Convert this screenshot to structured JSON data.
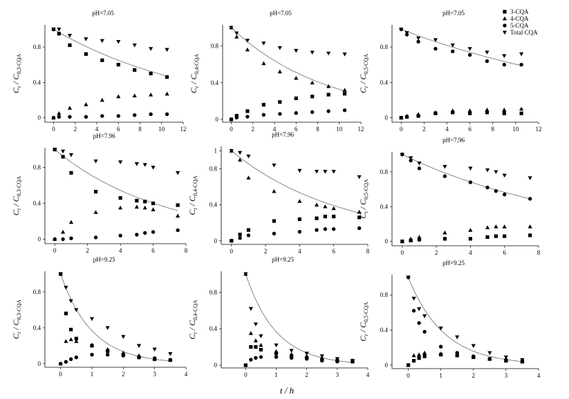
{
  "figure": {
    "x_axis_label": "t / h",
    "legend": {
      "placement": "top-right",
      "entries": [
        {
          "name": "3-CQA",
          "marker": "square"
        },
        {
          "name": "4-CQA",
          "marker": "triangle-up"
        },
        {
          "name": "5-CQA",
          "marker": "circle"
        },
        {
          "name": "Total CQA",
          "marker": "triangle-down"
        }
      ]
    }
  },
  "chart_data": [
    {
      "type": "scatter",
      "title": "pH=7.05",
      "ylabel_main": "C",
      "ylabel_sub": "t",
      "ylabel_main2": "C",
      "ylabel_sub2": "0,3-CQA",
      "xlim": [
        -0.8,
        12
      ],
      "ylim": [
        -0.05,
        1.05
      ],
      "xticks": [
        0,
        2,
        4,
        6,
        8,
        10,
        12
      ],
      "yticks": [
        0,
        0.4,
        0.8
      ],
      "x": [
        0,
        0.5,
        1.5,
        3,
        4.5,
        6,
        7.5,
        9,
        10.5
      ],
      "series": [
        {
          "name": "3-CQA",
          "values": [
            1.0,
            0.95,
            0.82,
            0.72,
            0.65,
            0.6,
            0.54,
            0.5,
            0.46
          ]
        },
        {
          "name": "4-CQA",
          "values": [
            0,
            0.05,
            0.11,
            0.15,
            0.2,
            0.24,
            0.25,
            0.26,
            0.27
          ]
        },
        {
          "name": "5-CQA",
          "values": [
            0,
            0.01,
            0.01,
            0.01,
            0.02,
            0.02,
            0.03,
            0.04,
            0.04
          ]
        },
        {
          "name": "Total CQA",
          "values": [
            1.0,
            1.0,
            0.93,
            0.89,
            0.87,
            0.86,
            0.82,
            0.78,
            0.77
          ]
        }
      ],
      "fit": {
        "x0": 0,
        "x1": 10.5,
        "y0": 1.0,
        "y1": 0.47
      }
    },
    {
      "type": "scatter",
      "title": "pH=7.05",
      "ylabel_main": "C",
      "ylabel_sub": "t",
      "ylabel_main2": "C",
      "ylabel_sub2": "0,4-CQA",
      "xlim": [
        -0.8,
        12
      ],
      "ylim": [
        -0.03,
        1.03
      ],
      "xticks": [
        0,
        2,
        4,
        6,
        8,
        10,
        12
      ],
      "yticks": [
        0,
        0.4,
        0.8
      ],
      "x": [
        0,
        0.5,
        1.5,
        3,
        4.5,
        6,
        7.5,
        9,
        10.5
      ],
      "series": [
        {
          "name": "3-CQA",
          "values": [
            0,
            0.04,
            0.09,
            0.16,
            0.19,
            0.23,
            0.25,
            0.27,
            0.28
          ]
        },
        {
          "name": "4-CQA",
          "values": [
            1.0,
            0.9,
            0.76,
            0.61,
            0.52,
            0.45,
            0.4,
            0.36,
            0.32
          ]
        },
        {
          "name": "5-CQA",
          "values": [
            0,
            0.02,
            0.03,
            0.05,
            0.06,
            0.07,
            0.08,
            0.09,
            0.1
          ]
        },
        {
          "name": "Total CQA",
          "values": [
            1.0,
            0.94,
            0.86,
            0.83,
            0.78,
            0.75,
            0.73,
            0.72,
            0.71
          ]
        }
      ],
      "fit": {
        "x0": 0,
        "x1": 10.5,
        "y0": 1.0,
        "y1": 0.31
      }
    },
    {
      "type": "scatter",
      "title": "pH=7.05",
      "ylabel_main": "C",
      "ylabel_sub": "t",
      "ylabel_main2": "C",
      "ylabel_sub2": "0,5-CQA",
      "xlim": [
        -0.8,
        12
      ],
      "ylim": [
        -0.05,
        1.05
      ],
      "xticks": [
        0,
        2,
        4,
        6,
        8,
        10,
        12
      ],
      "yticks": [
        0,
        0.4,
        0.8
      ],
      "x": [
        0,
        0.5,
        1.5,
        3,
        4.5,
        6,
        7.5,
        9,
        10.5
      ],
      "series": [
        {
          "name": "3-CQA",
          "values": [
            0,
            0.01,
            0.02,
            0.05,
            0.06,
            0.05,
            0.06,
            0.05,
            0.05
          ]
        },
        {
          "name": "4-CQA",
          "values": [
            0,
            0.02,
            0.04,
            0.06,
            0.08,
            0.08,
            0.09,
            0.09,
            0.1
          ]
        },
        {
          "name": "5-CQA",
          "values": [
            1.0,
            0.94,
            0.86,
            0.78,
            0.75,
            0.71,
            0.64,
            0.6,
            0.6
          ]
        },
        {
          "name": "Total CQA",
          "values": [
            1.0,
            0.96,
            0.9,
            0.88,
            0.82,
            0.78,
            0.74,
            0.7,
            0.72
          ]
        }
      ],
      "fit": {
        "x0": 0,
        "x1": 10.5,
        "y0": 1.0,
        "y1": 0.59
      }
    },
    {
      "type": "scatter",
      "title": "pH=7.96",
      "ylabel_main": "C",
      "ylabel_sub": "t",
      "ylabel_main2": "C",
      "ylabel_sub2": "0,3-CQA",
      "xlim": [
        -0.6,
        8
      ],
      "ylim": [
        -0.05,
        1.02
      ],
      "xticks": [
        0,
        2,
        4,
        6,
        8
      ],
      "yticks": [
        0,
        0.4,
        0.8
      ],
      "x": [
        0,
        0.5,
        1,
        2.5,
        4,
        5,
        5.5,
        6,
        7.5
      ],
      "series": [
        {
          "name": "3-CQA",
          "values": [
            1.0,
            0.92,
            0.74,
            0.53,
            0.46,
            0.43,
            0.42,
            0.4,
            0.38
          ]
        },
        {
          "name": "4-CQA",
          "values": [
            0,
            0.08,
            0.19,
            0.3,
            0.35,
            0.36,
            0.35,
            0.33,
            0.26
          ]
        },
        {
          "name": "5-CQA",
          "values": [
            0,
            0,
            0.01,
            0.02,
            0.04,
            0.05,
            0.07,
            0.08,
            0.1
          ]
        },
        {
          "name": "Total CQA",
          "values": [
            1.0,
            0.98,
            0.94,
            0.87,
            0.86,
            0.84,
            0.83,
            0.8,
            0.74
          ]
        }
      ],
      "fit": {
        "x0": 0,
        "x1": 7.5,
        "y0": 1.0,
        "y1": 0.32
      }
    },
    {
      "type": "scatter",
      "title": "pH=7.96",
      "ylabel_main": "C",
      "ylabel_sub": "t",
      "ylabel_main2": "C",
      "ylabel_sub2": "0,4-CQA",
      "xlim": [
        -0.6,
        8
      ],
      "ylim": [
        -0.04,
        1.05
      ],
      "xticks": [
        0,
        2,
        4,
        6,
        8
      ],
      "yticks": [
        0,
        0.4,
        0.8,
        1.0
      ],
      "x": [
        0,
        0.5,
        1,
        2.5,
        4,
        5,
        5.5,
        6,
        7.5
      ],
      "series": [
        {
          "name": "3-CQA",
          "values": [
            0,
            0.07,
            0.12,
            0.22,
            0.24,
            0.25,
            0.27,
            0.27,
            0.26
          ]
        },
        {
          "name": "4-CQA",
          "values": [
            1.0,
            0.9,
            0.7,
            0.55,
            0.44,
            0.4,
            0.38,
            0.36,
            0.32
          ]
        },
        {
          "name": "5-CQA",
          "values": [
            0,
            0.03,
            0.06,
            0.08,
            0.1,
            0.12,
            0.13,
            0.13,
            0.14
          ]
        },
        {
          "name": "Total CQA",
          "values": [
            1.0,
            0.98,
            0.94,
            0.84,
            0.78,
            0.77,
            0.77,
            0.77,
            0.71
          ]
        }
      ],
      "fit": {
        "x0": 0,
        "x1": 7.5,
        "y0": 1.0,
        "y1": 0.31
      }
    },
    {
      "type": "scatter",
      "title": "pH=7.96",
      "ylabel_main": "C",
      "ylabel_sub": "t",
      "ylabel_main2": "C",
      "ylabel_sub2": "0,5-CQA",
      "xlim": [
        -0.6,
        8
      ],
      "ylim": [
        -0.05,
        1.03
      ],
      "xticks": [
        0,
        2,
        4,
        6,
        8
      ],
      "yticks": [
        0,
        0.4,
        0.8
      ],
      "x": [
        0,
        0.5,
        1,
        2.5,
        4,
        5,
        5.5,
        6,
        7.5
      ],
      "series": [
        {
          "name": "3-CQA",
          "values": [
            0,
            0.01,
            0.02,
            0.03,
            0.03,
            0.05,
            0.06,
            0.06,
            0.07
          ]
        },
        {
          "name": "4-CQA",
          "values": [
            0,
            0.03,
            0.05,
            0.1,
            0.13,
            0.16,
            0.17,
            0.17,
            0.17
          ]
        },
        {
          "name": "5-CQA",
          "values": [
            1.0,
            0.93,
            0.84,
            0.75,
            0.68,
            0.62,
            0.58,
            0.54,
            0.49
          ]
        },
        {
          "name": "Total CQA",
          "values": [
            1.0,
            0.96,
            0.9,
            0.86,
            0.84,
            0.82,
            0.8,
            0.76,
            0.73
          ]
        }
      ],
      "fit": {
        "x0": 0,
        "x1": 7.5,
        "y0": 1.0,
        "y1": 0.49
      }
    },
    {
      "type": "scatter",
      "title": "pH=9.25",
      "ylabel_main": "C",
      "ylabel_sub": "t",
      "ylabel_main2": "C",
      "ylabel_sub2": "0,3-CQA",
      "xlim": [
        -0.5,
        4
      ],
      "ylim": [
        -0.04,
        1.03
      ],
      "xticks": [
        0,
        1,
        2,
        3,
        4
      ],
      "yticks": [
        0,
        0.4,
        0.8
      ],
      "x": [
        0,
        0.17,
        0.33,
        0.5,
        1,
        1.5,
        2,
        2.5,
        3,
        3.5
      ],
      "series": [
        {
          "name": "3-CQA",
          "values": [
            1.0,
            0.56,
            0.38,
            0.28,
            0.2,
            0.14,
            0.1,
            0.07,
            0.05,
            0.04
          ]
        },
        {
          "name": "4-CQA",
          "values": [
            0,
            0.25,
            0.27,
            0.25,
            0.21,
            0.16,
            0.12,
            0.09,
            0.06,
            0.04
          ]
        },
        {
          "name": "5-CQA",
          "values": [
            0,
            0.02,
            0.05,
            0.07,
            0.1,
            0.1,
            0.09,
            0.07,
            0.06,
            0.04
          ]
        },
        {
          "name": "Total CQA",
          "values": [
            1.0,
            0.85,
            0.7,
            0.6,
            0.5,
            0.4,
            0.3,
            0.2,
            0.16,
            0.11
          ]
        }
      ],
      "fit": {
        "x0": 0,
        "x1": 3.5,
        "y0": 1.0,
        "y1": 0.03
      }
    },
    {
      "type": "scatter",
      "title": "pH=9.25",
      "ylabel_main": "C",
      "ylabel_sub": "t",
      "ylabel_main2": "C",
      "ylabel_sub2": "0,4-CQA",
      "xlim": [
        -0.8,
        4
      ],
      "ylim": [
        -0.03,
        1.03
      ],
      "xticks": [
        0,
        1,
        2,
        3,
        4
      ],
      "yticks": [
        0,
        0.4,
        0.8
      ],
      "x": [
        0,
        0.17,
        0.33,
        0.5,
        1,
        1.5,
        2,
        2.5,
        3,
        3.5
      ],
      "series": [
        {
          "name": "3-CQA",
          "values": [
            0,
            0.2,
            0.2,
            0.17,
            0.13,
            0.1,
            0.08,
            0.06,
            0.05,
            0.04
          ]
        },
        {
          "name": "4-CQA",
          "values": [
            1.0,
            0.35,
            0.27,
            0.22,
            0.15,
            0.12,
            0.1,
            0.08,
            0.06,
            0.05
          ]
        },
        {
          "name": "5-CQA",
          "values": [
            0,
            0.06,
            0.08,
            0.09,
            0.09,
            0.08,
            0.07,
            0.05,
            0.04,
            0.04
          ]
        },
        {
          "name": "Total CQA",
          "values": [
            1.0,
            0.62,
            0.45,
            0.32,
            0.22,
            0.16,
            0.13,
            0.1,
            0.07,
            0.05
          ]
        }
      ],
      "fit": {
        "x0": 0,
        "x1": 3.5,
        "y0": 1.0,
        "y1": 0.03
      }
    },
    {
      "type": "scatter",
      "title": "pH=9.25",
      "ylabel_main": "C",
      "ylabel_sub": "t",
      "ylabel_main2": "C",
      "ylabel_sub2": "0,5-CQA",
      "xlim": [
        -0.5,
        4
      ],
      "ylim": [
        -0.04,
        1.03
      ],
      "xticks": [
        0,
        1,
        2,
        3,
        4
      ],
      "yticks": [
        0,
        0.4,
        0.8
      ],
      "x": [
        0,
        0.17,
        0.33,
        0.5,
        1,
        1.5,
        2,
        2.5,
        3,
        3.5
      ],
      "series": [
        {
          "name": "3-CQA",
          "values": [
            0,
            0.05,
            0.08,
            0.1,
            0.12,
            0.11,
            0.09,
            0.07,
            0.05,
            0.04
          ]
        },
        {
          "name": "4-CQA",
          "values": [
            0,
            0.11,
            0.12,
            0.14,
            0.13,
            0.12,
            0.1,
            0.07,
            0.05,
            0.04
          ]
        },
        {
          "name": "5-CQA",
          "values": [
            1.0,
            0.62,
            0.48,
            0.38,
            0.21,
            0.14,
            0.1,
            0.07,
            0.06,
            0.04
          ]
        },
        {
          "name": "Total CQA",
          "values": [
            1.0,
            0.76,
            0.64,
            0.56,
            0.42,
            0.32,
            0.22,
            0.14,
            0.09,
            0.06
          ]
        }
      ],
      "fit": {
        "x0": 0,
        "x1": 3.5,
        "y0": 1.0,
        "y1": 0.04
      }
    }
  ]
}
